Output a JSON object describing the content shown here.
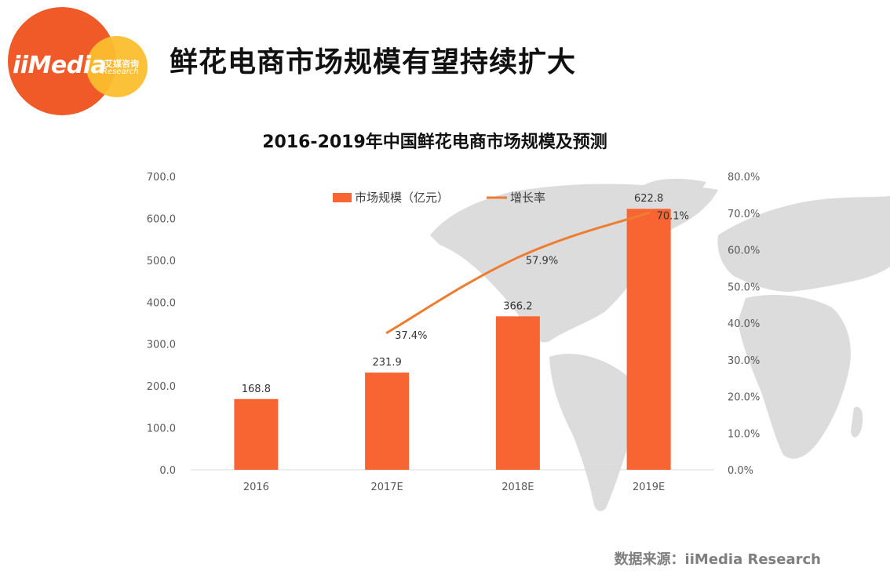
{
  "logo": {
    "brand": "iiMedia",
    "brand_cn": "艾媒咨询",
    "brand_en": "Research"
  },
  "page_title": "鲜花电商市场规模有望持续扩大",
  "source": "数据来源：iiMedia Research",
  "colors": {
    "bar": "#F96433",
    "line": "#ED7D31",
    "map": "#DCDCDC",
    "logo_main": "#F05A28",
    "logo_accent": "#FBBE2E"
  },
  "chart_data": {
    "type": "bar",
    "title": "2016-2019年中国鲜花电商市场规模及预测",
    "categories": [
      "2016",
      "2017E",
      "2018E",
      "2019E"
    ],
    "series": [
      {
        "name": "市场规模（亿元）",
        "type": "bar",
        "axis": "left",
        "values": [
          168.8,
          231.9,
          366.2,
          622.8
        ],
        "labels": [
          "168.8",
          "231.9",
          "366.2",
          "622.8"
        ]
      },
      {
        "name": "增长率",
        "type": "line",
        "axis": "right",
        "values": [
          null,
          37.4,
          57.9,
          70.1
        ],
        "labels": [
          "",
          "37.4%",
          "57.9%",
          "70.1%"
        ]
      }
    ],
    "y_left": {
      "min": 0,
      "max": 700,
      "step": 100,
      "ticks": [
        "0.0",
        "100.0",
        "200.0",
        "300.0",
        "400.0",
        "500.0",
        "600.0",
        "700.0"
      ]
    },
    "y_right": {
      "min": 0,
      "max": 80,
      "step": 10,
      "ticks": [
        "0.0%",
        "10.0%",
        "20.0%",
        "30.0%",
        "40.0%",
        "50.0%",
        "60.0%",
        "70.0%",
        "80.0%"
      ]
    },
    "legend": "top",
    "grid": false
  }
}
